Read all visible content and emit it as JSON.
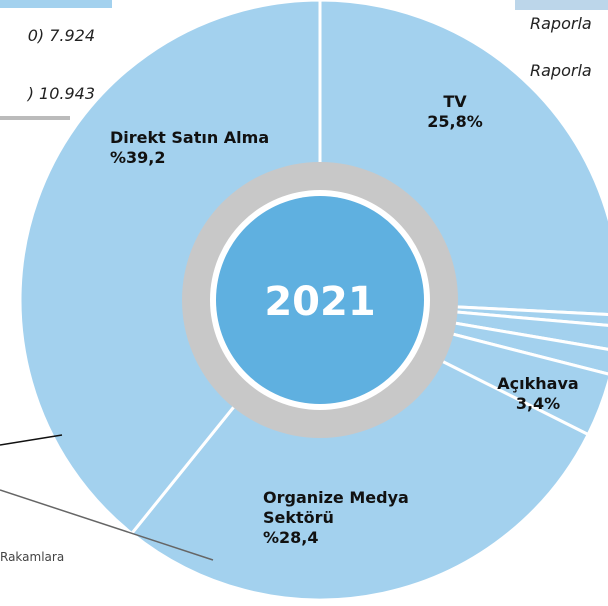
{
  "chart_data": {
    "type": "pie",
    "center_label": "2021",
    "categories": [
      "TV",
      null,
      null,
      null,
      "Açıkhava",
      "Organize Medya Sektörü",
      "Direkt Satın Alma"
    ],
    "values": [
      25.8,
      0.6,
      1.3,
      1.3,
      3.4,
      28.4,
      39.2
    ],
    "value_labels": [
      "25,8%",
      null,
      null,
      null,
      "3,4%",
      "%28,4",
      "%39,2"
    ],
    "color": "#a3d1ee",
    "annotations": [
      "0) 7.924",
      ") 10.943",
      "Raporla",
      "Raporla",
      "Rakamlara"
    ]
  }
}
